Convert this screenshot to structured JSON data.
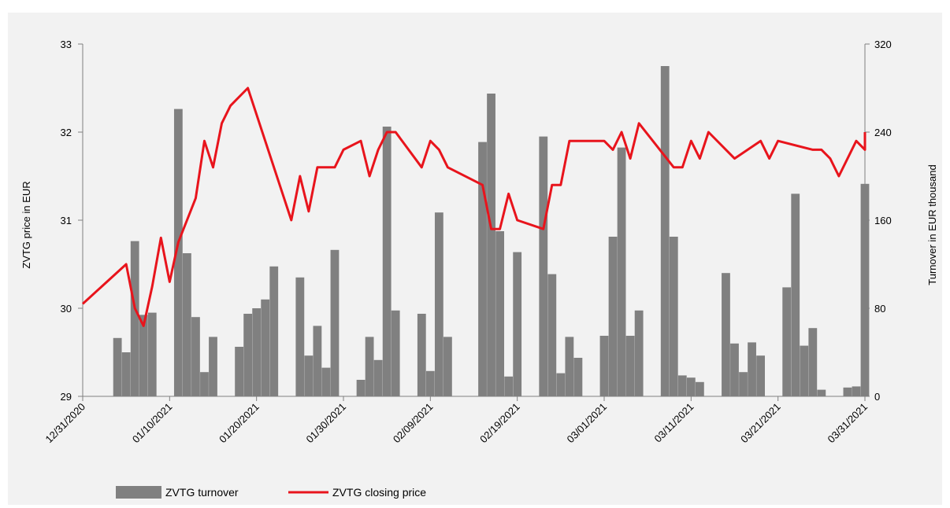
{
  "chart_data": {
    "type": "bar+line",
    "title": "",
    "y_left": {
      "label": "ZVTG price in EUR",
      "min": 29,
      "max": 33,
      "ticks": [
        "29",
        "30",
        "31",
        "32",
        "33"
      ]
    },
    "y_right": {
      "label": "Turnover in EUR thousand",
      "min": 0,
      "max": 320,
      "ticks": [
        "0",
        "80",
        "160",
        "240",
        "320"
      ]
    },
    "x_axis": {
      "start": "2020-12-31",
      "end": "2021-03-31",
      "tick_labels": [
        "12/31/2020",
        "01/10/2021",
        "01/20/2021",
        "01/30/2021",
        "02/09/2021",
        "02/19/2021",
        "03/01/2021",
        "03/11/2021",
        "03/21/2021",
        "03/31/2021"
      ]
    },
    "legend": {
      "placement": "bottom",
      "entries": [
        {
          "label": "ZVTG turnover",
          "type": "bar"
        },
        {
          "label": "ZVTG closing price",
          "type": "line"
        }
      ]
    },
    "colors": {
      "bar": "#808080",
      "line": "#e8141c",
      "background": "#f2f2f2",
      "axis": "#808080"
    },
    "grid": false,
    "bars": [
      {
        "date": "2021-01-04",
        "turnover": 53
      },
      {
        "date": "2021-01-05",
        "turnover": 40
      },
      {
        "date": "2021-01-06",
        "turnover": 141
      },
      {
        "date": "2021-01-07",
        "turnover": 74
      },
      {
        "date": "2021-01-08",
        "turnover": 76
      },
      {
        "date": "2021-01-11",
        "turnover": 261
      },
      {
        "date": "2021-01-12",
        "turnover": 130
      },
      {
        "date": "2021-01-13",
        "turnover": 72
      },
      {
        "date": "2021-01-14",
        "turnover": 22
      },
      {
        "date": "2021-01-15",
        "turnover": 54
      },
      {
        "date": "2021-01-18",
        "turnover": 45
      },
      {
        "date": "2021-01-19",
        "turnover": 75
      },
      {
        "date": "2021-01-20",
        "turnover": 80
      },
      {
        "date": "2021-01-21",
        "turnover": 88
      },
      {
        "date": "2021-01-22",
        "turnover": 118
      },
      {
        "date": "2021-01-25",
        "turnover": 108
      },
      {
        "date": "2021-01-26",
        "turnover": 37
      },
      {
        "date": "2021-01-27",
        "turnover": 64
      },
      {
        "date": "2021-01-28",
        "turnover": 26
      },
      {
        "date": "2021-01-29",
        "turnover": 133
      },
      {
        "date": "2021-02-01",
        "turnover": 15
      },
      {
        "date": "2021-02-02",
        "turnover": 54
      },
      {
        "date": "2021-02-03",
        "turnover": 33
      },
      {
        "date": "2021-02-04",
        "turnover": 245
      },
      {
        "date": "2021-02-05",
        "turnover": 78
      },
      {
        "date": "2021-02-08",
        "turnover": 75
      },
      {
        "date": "2021-02-09",
        "turnover": 23
      },
      {
        "date": "2021-02-10",
        "turnover": 167
      },
      {
        "date": "2021-02-11",
        "turnover": 54
      },
      {
        "date": "2021-02-15",
        "turnover": 231
      },
      {
        "date": "2021-02-16",
        "turnover": 275
      },
      {
        "date": "2021-02-17",
        "turnover": 150
      },
      {
        "date": "2021-02-18",
        "turnover": 18
      },
      {
        "date": "2021-02-19",
        "turnover": 131
      },
      {
        "date": "2021-02-22",
        "turnover": 236
      },
      {
        "date": "2021-02-23",
        "turnover": 111
      },
      {
        "date": "2021-02-24",
        "turnover": 21
      },
      {
        "date": "2021-02-25",
        "turnover": 54
      },
      {
        "date": "2021-02-26",
        "turnover": 35
      },
      {
        "date": "2021-03-01",
        "turnover": 55
      },
      {
        "date": "2021-03-02",
        "turnover": 145
      },
      {
        "date": "2021-03-03",
        "turnover": 226
      },
      {
        "date": "2021-03-04",
        "turnover": 55
      },
      {
        "date": "2021-03-05",
        "turnover": 78
      },
      {
        "date": "2021-03-08",
        "turnover": 300
      },
      {
        "date": "2021-03-09",
        "turnover": 145
      },
      {
        "date": "2021-03-10",
        "turnover": 19
      },
      {
        "date": "2021-03-11",
        "turnover": 17
      },
      {
        "date": "2021-03-12",
        "turnover": 13
      },
      {
        "date": "2021-03-15",
        "turnover": 112
      },
      {
        "date": "2021-03-16",
        "turnover": 48
      },
      {
        "date": "2021-03-17",
        "turnover": 22
      },
      {
        "date": "2021-03-18",
        "turnover": 49
      },
      {
        "date": "2021-03-19",
        "turnover": 37
      },
      {
        "date": "2021-03-22",
        "turnover": 99
      },
      {
        "date": "2021-03-23",
        "turnover": 184
      },
      {
        "date": "2021-03-24",
        "turnover": 46
      },
      {
        "date": "2021-03-25",
        "turnover": 62
      },
      {
        "date": "2021-03-26",
        "turnover": 6
      },
      {
        "date": "2021-03-29",
        "turnover": 8
      },
      {
        "date": "2021-03-30",
        "turnover": 9
      },
      {
        "date": "2021-03-31",
        "turnover": 193
      }
    ],
    "line": [
      {
        "date": "2020-12-31",
        "price": 30.05
      },
      {
        "date": "2021-01-05",
        "price": 30.5
      },
      {
        "date": "2021-01-06",
        "price": 30.0
      },
      {
        "date": "2021-01-07",
        "price": 29.8
      },
      {
        "date": "2021-01-08",
        "price": 30.25
      },
      {
        "date": "2021-01-09",
        "price": 30.8
      },
      {
        "date": "2021-01-10",
        "price": 30.3
      },
      {
        "date": "2021-01-11",
        "price": 30.75
      },
      {
        "date": "2021-01-12",
        "price": 31.0
      },
      {
        "date": "2021-01-13",
        "price": 31.25
      },
      {
        "date": "2021-01-14",
        "price": 31.9
      },
      {
        "date": "2021-01-15",
        "price": 31.6
      },
      {
        "date": "2021-01-16",
        "price": 32.1
      },
      {
        "date": "2021-01-17",
        "price": 32.3
      },
      {
        "date": "2021-01-19",
        "price": 32.5
      },
      {
        "date": "2021-01-24",
        "price": 31.0
      },
      {
        "date": "2021-01-25",
        "price": 31.5
      },
      {
        "date": "2021-01-26",
        "price": 31.1
      },
      {
        "date": "2021-01-27",
        "price": 31.6
      },
      {
        "date": "2021-01-29",
        "price": 31.6
      },
      {
        "date": "2021-01-30",
        "price": 31.8
      },
      {
        "date": "2021-02-01",
        "price": 31.9
      },
      {
        "date": "2021-02-02",
        "price": 31.5
      },
      {
        "date": "2021-02-03",
        "price": 31.8
      },
      {
        "date": "2021-02-04",
        "price": 32.0
      },
      {
        "date": "2021-02-05",
        "price": 32.0
      },
      {
        "date": "2021-02-08",
        "price": 31.6
      },
      {
        "date": "2021-02-09",
        "price": 31.9
      },
      {
        "date": "2021-02-10",
        "price": 31.8
      },
      {
        "date": "2021-02-11",
        "price": 31.6
      },
      {
        "date": "2021-02-15",
        "price": 31.4
      },
      {
        "date": "2021-02-16",
        "price": 30.9
      },
      {
        "date": "2021-02-17",
        "price": 30.9
      },
      {
        "date": "2021-02-18",
        "price": 31.3
      },
      {
        "date": "2021-02-19",
        "price": 31.0
      },
      {
        "date": "2021-02-22",
        "price": 30.9
      },
      {
        "date": "2021-02-23",
        "price": 31.4
      },
      {
        "date": "2021-02-24",
        "price": 31.4
      },
      {
        "date": "2021-02-25",
        "price": 31.9
      },
      {
        "date": "2021-02-26",
        "price": 31.9
      },
      {
        "date": "2021-03-01",
        "price": 31.9
      },
      {
        "date": "2021-03-02",
        "price": 31.8
      },
      {
        "date": "2021-03-03",
        "price": 32.0
      },
      {
        "date": "2021-03-04",
        "price": 31.7
      },
      {
        "date": "2021-03-05",
        "price": 32.1
      },
      {
        "date": "2021-03-09",
        "price": 31.6
      },
      {
        "date": "2021-03-10",
        "price": 31.6
      },
      {
        "date": "2021-03-11",
        "price": 31.9
      },
      {
        "date": "2021-03-12",
        "price": 31.7
      },
      {
        "date": "2021-03-13",
        "price": 32.0
      },
      {
        "date": "2021-03-16",
        "price": 31.7
      },
      {
        "date": "2021-03-19",
        "price": 31.9
      },
      {
        "date": "2021-03-20",
        "price": 31.7
      },
      {
        "date": "2021-03-21",
        "price": 31.9
      },
      {
        "date": "2021-03-25",
        "price": 31.8
      },
      {
        "date": "2021-03-26",
        "price": 31.8
      },
      {
        "date": "2021-03-27",
        "price": 31.7
      },
      {
        "date": "2021-03-28",
        "price": 31.5
      },
      {
        "date": "2021-03-30",
        "price": 31.9
      },
      {
        "date": "2021-03-31",
        "price": 31.8
      },
      {
        "date": "2021-04-01",
        "price": 32.0
      }
    ]
  }
}
